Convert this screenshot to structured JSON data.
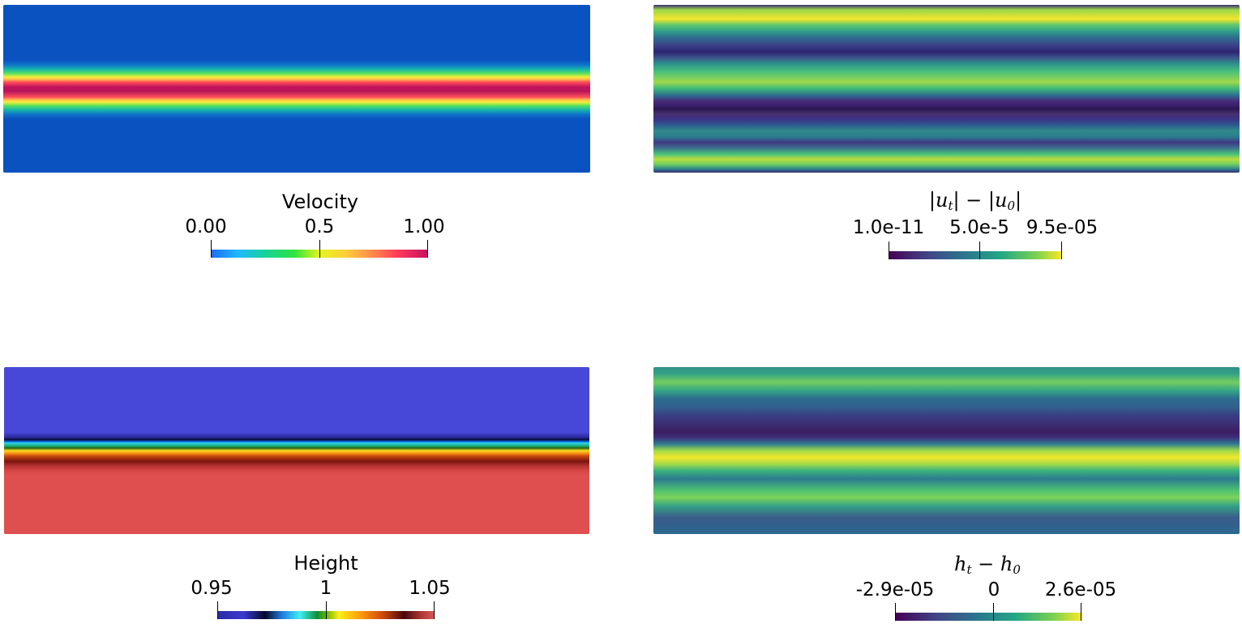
{
  "panels": {
    "velocity": {
      "title": "Velocity",
      "ticks": [
        "0.00",
        "0.5",
        "1.00"
      ],
      "colormap": "rainbow"
    },
    "velocity_diff": {
      "title_parts": [
        "|",
        "u",
        "t",
        "| − |",
        "u",
        "0",
        "|"
      ],
      "ticks": [
        "1.0e-11",
        "5.0e-5",
        "9.5e-05"
      ],
      "colormap": "viridis"
    },
    "height": {
      "title": "Height",
      "ticks": [
        "0.95",
        "1",
        "1.05"
      ],
      "colormap": "rainbow-desaturated"
    },
    "height_diff": {
      "title_parts": [
        "h",
        "t",
        " − ",
        "h",
        "0"
      ],
      "ticks": [
        "-2.9e-05",
        "0",
        "2.6e-05"
      ],
      "colormap": "viridis"
    }
  }
}
